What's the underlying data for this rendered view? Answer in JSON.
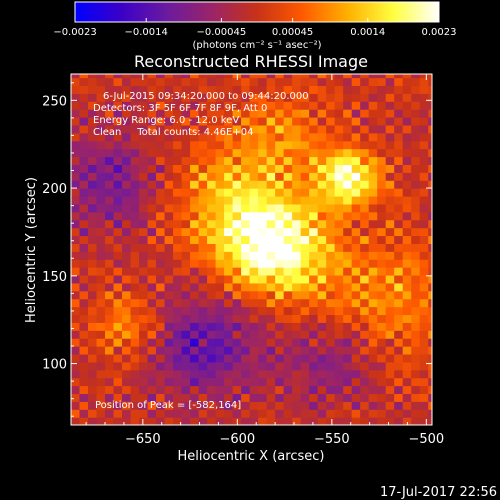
{
  "chart_data": {
    "type": "heatmap",
    "title": "Reconstructed RHESSI Image",
    "xlabel": "Heliocentric X (arcsec)",
    "ylabel": "Heliocentric Y (arcsec)",
    "xlim": [
      -688,
      -497
    ],
    "ylim": [
      65,
      265
    ],
    "x_ticks": [
      -650,
      -600,
      -550,
      -500
    ],
    "y_ticks": [
      100,
      150,
      200,
      250
    ],
    "x_tick_labels": [
      "−650",
      "−600",
      "−550",
      "−500"
    ],
    "y_tick_labels": [
      "100",
      "150",
      "200",
      "250"
    ],
    "colorbar": {
      "min": -0.0023,
      "max": 0.0023,
      "ticks": [
        -0.0023,
        -0.0014,
        -0.00045,
        0.00045,
        0.0014,
        0.0023
      ],
      "tick_labels": [
        "−0.0023",
        "−0.0014",
        "−0.00045",
        "0.00045",
        "0.0014",
        "0.0023"
      ],
      "units_label": "(photons cm⁻² s⁻¹ asec⁻²)",
      "colormap": [
        "#0000ff",
        "#3a00c8",
        "#6a1aa0",
        "#9a2468",
        "#c83218",
        "#ff5a00",
        "#ffb000",
        "#ffff40",
        "#ffffff"
      ]
    },
    "annotations": [
      "6-Jul-2015 09:34:20.000 to 09:44:20.000",
      "Detectors: 3F 5F 6F 7F 8F 9F, Att 0",
      "Energy Range: 6.0 - 12.0 keV",
      "Clean     Total counts: 4.46E+04"
    ],
    "peak_label": "Position of Peak = [-582,164]",
    "sources": [
      {
        "x": -582,
        "y": 164,
        "peak": 0.0023,
        "sigma": 20
      },
      {
        "x": -543,
        "y": 203,
        "peak": 0.0021,
        "sigma": 11
      },
      {
        "x": -610,
        "y": 190,
        "peak": 0.0011,
        "sigma": 22
      },
      {
        "x": -525,
        "y": 135,
        "peak": 0.0009,
        "sigma": 25
      },
      {
        "x": -660,
        "y": 120,
        "peak": 0.0009,
        "sigma": 14
      },
      {
        "x": -575,
        "y": 225,
        "peak": 0.0008,
        "sigma": 20
      },
      {
        "x": -620,
        "y": 110,
        "peak": -0.0012,
        "sigma": 22
      },
      {
        "x": -670,
        "y": 200,
        "peak": -0.0009,
        "sigma": 22
      },
      {
        "x": -550,
        "y": 100,
        "peak": -0.0008,
        "sigma": 18
      }
    ]
  },
  "footer": {
    "timestamp": "17-Jul-2017 22:56"
  }
}
